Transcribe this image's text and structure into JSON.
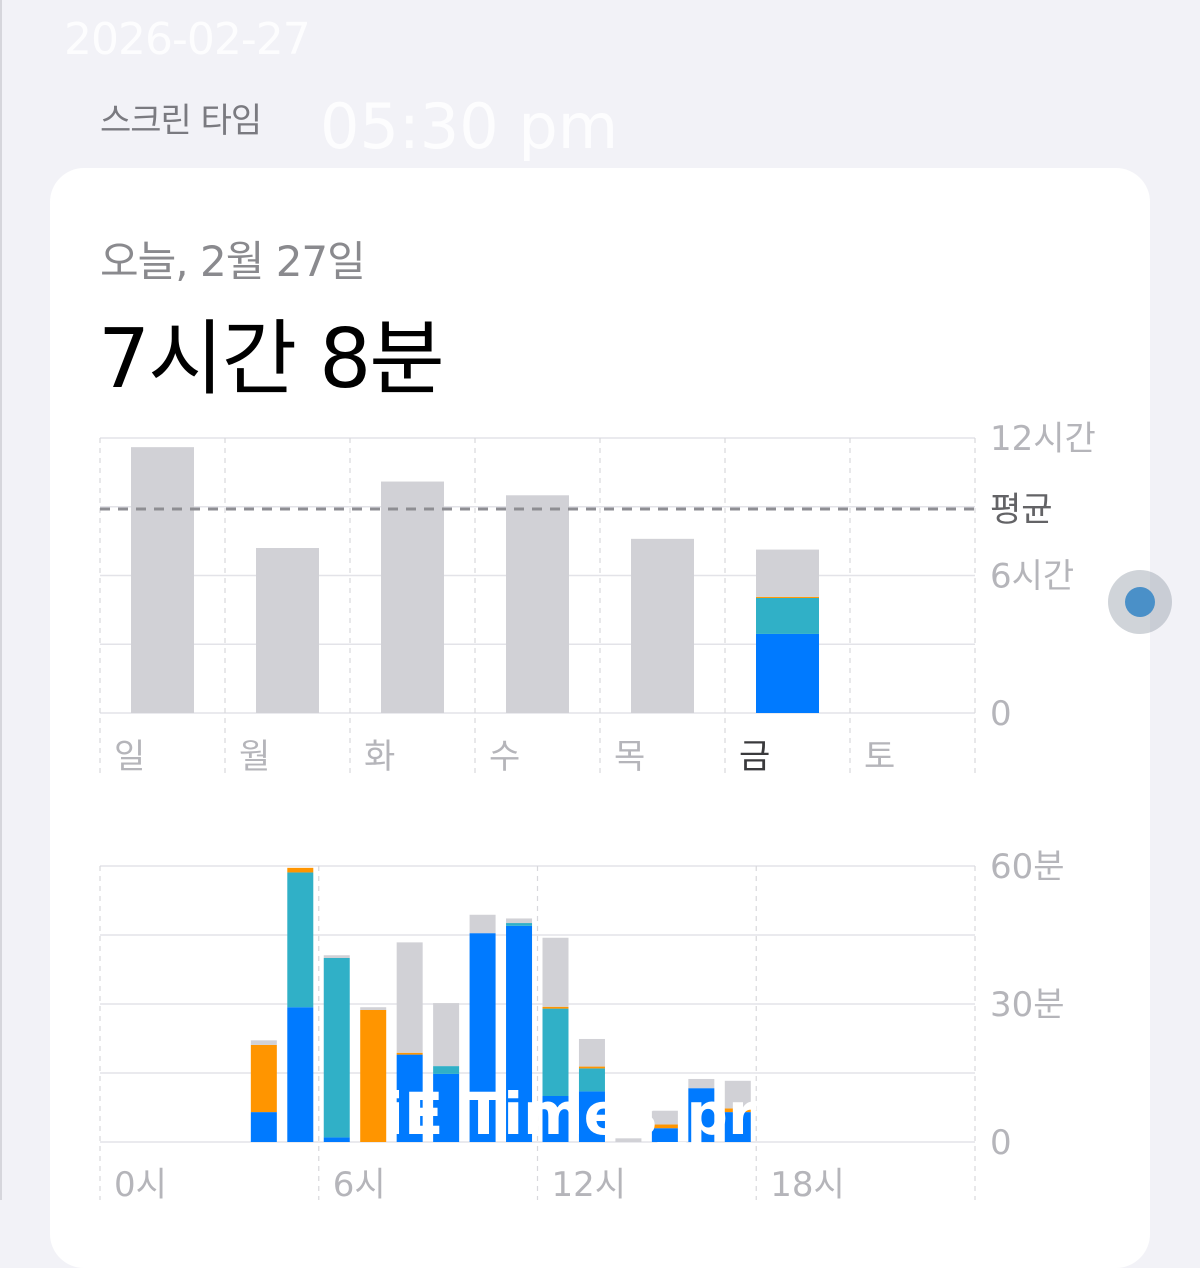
{
  "overlay": {
    "date": "2026-02-27",
    "time": "05:30 pm"
  },
  "header": {
    "title": "스크린 타임"
  },
  "summary": {
    "date": "오늘, 2월 27일",
    "total": "7시간 8분"
  },
  "colors": {
    "blue": "#007aff",
    "teal": "#30b0c7",
    "orange": "#ff9500",
    "gray": "#d1d1d6"
  },
  "chart_data": [
    {
      "type": "bar",
      "stacked": true,
      "categories": [
        "일",
        "월",
        "화",
        "수",
        "목",
        "금",
        "토"
      ],
      "highlight": "금",
      "yticks": [
        "12시간",
        "평균",
        "6시간",
        "0"
      ],
      "ylim": [
        0,
        12
      ],
      "average": 8.9,
      "series": [
        {
          "color": "blue",
          "values": [
            0,
            0,
            0,
            0,
            0,
            3.45,
            0
          ]
        },
        {
          "color": "teal",
          "values": [
            0,
            0,
            0,
            0,
            0,
            1.57,
            0
          ]
        },
        {
          "color": "orange",
          "values": [
            0,
            0,
            0,
            0,
            0,
            0.05,
            0
          ]
        },
        {
          "color": "gray",
          "values": [
            11.6,
            7.2,
            10.1,
            9.5,
            7.6,
            2.06,
            0
          ]
        }
      ]
    },
    {
      "type": "bar",
      "stacked": true,
      "xticks": [
        "0시",
        "6시",
        "12시",
        "18시"
      ],
      "yticks": [
        "60분",
        "30분",
        "0"
      ],
      "ylim": [
        0,
        60
      ],
      "x": [
        0,
        1,
        2,
        3,
        4,
        5,
        6,
        7,
        8,
        9,
        10,
        11,
        12,
        13,
        14,
        15,
        16,
        17,
        18,
        19,
        20,
        21,
        22,
        23
      ],
      "series": [
        {
          "color": "blue",
          "values": [
            0,
            0,
            0,
            0,
            6.5,
            29.3,
            1,
            0,
            19,
            14.8,
            45.4,
            47,
            10,
            11,
            0,
            3,
            11.7,
            6.5,
            0,
            0,
            0,
            0,
            0,
            0
          ]
        },
        {
          "color": "teal",
          "values": [
            0,
            0,
            0,
            0,
            0,
            29.3,
            39,
            0,
            0,
            1.7,
            0,
            0.6,
            19,
            5,
            0,
            0,
            0,
            0,
            0,
            0,
            0,
            0,
            0,
            0
          ]
        },
        {
          "color": "orange",
          "values": [
            0,
            0,
            0,
            0,
            14.6,
            1,
            0,
            28.7,
            0.4,
            0,
            0,
            0,
            0.4,
            0.4,
            0,
            0.8,
            0,
            0.8,
            0,
            0,
            0,
            0,
            0,
            0
          ]
        },
        {
          "color": "gray",
          "values": [
            0,
            0,
            0,
            0,
            1,
            0,
            0.6,
            0.6,
            24,
            13.7,
            4,
            1,
            15,
            6,
            0.8,
            3,
            2,
            6,
            0,
            0,
            0,
            0,
            0,
            0
          ]
        }
      ]
    }
  ],
  "watermark": "iE Times_preview"
}
